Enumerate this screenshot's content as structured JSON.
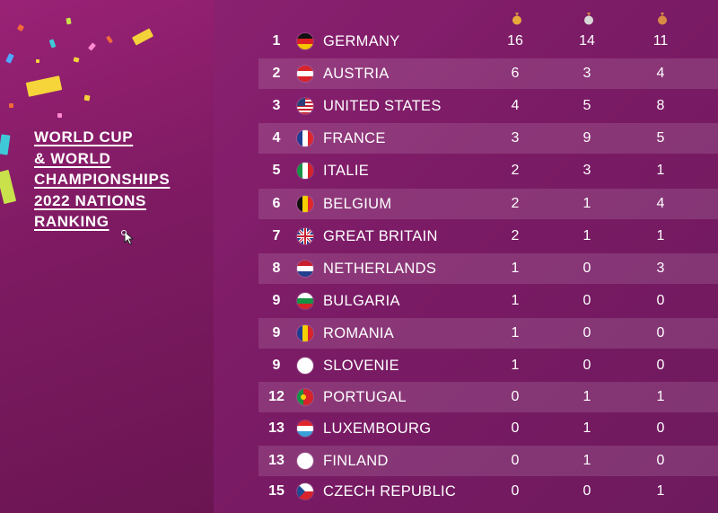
{
  "title_lines": [
    "WORLD CUP",
    "& WORLD",
    "CHAMPIONSHIPS",
    "2022 NATIONS",
    "RANKING"
  ],
  "colors": {
    "left_panel": "#8a1f6a",
    "right_panel": "#7c1b66",
    "text": "#ffffff",
    "gold": "#e9a93b",
    "silver": "#d8d8d8",
    "bronze": "#d98a45"
  },
  "medal_columns": [
    "gold-medal-icon",
    "silver-medal-icon",
    "bronze-medal-icon"
  ],
  "rows": [
    {
      "rank": "1",
      "flag": "germany-flag-icon",
      "country": "GERMANY",
      "gold": "16",
      "silver": "14",
      "bronze": "11"
    },
    {
      "rank": "2",
      "flag": "austria-flag-icon",
      "country": "AUSTRIA",
      "gold": "6",
      "silver": "3",
      "bronze": "4"
    },
    {
      "rank": "3",
      "flag": "united-states-flag-icon",
      "country": "UNITED STATES",
      "gold": "4",
      "silver": "5",
      "bronze": "8"
    },
    {
      "rank": "4",
      "flag": "france-flag-icon",
      "country": "FRANCE",
      "gold": "3",
      "silver": "9",
      "bronze": "5"
    },
    {
      "rank": "5",
      "flag": "italy-flag-icon",
      "country": "ITALIE",
      "gold": "2",
      "silver": "3",
      "bronze": "1"
    },
    {
      "rank": "6",
      "flag": "belgium-flag-icon",
      "country": "BELGIUM",
      "gold": "2",
      "silver": "1",
      "bronze": "4"
    },
    {
      "rank": "7",
      "flag": "great-britain-flag-icon",
      "country": "GREAT BRITAIN",
      "gold": "2",
      "silver": "1",
      "bronze": "1"
    },
    {
      "rank": "8",
      "flag": "netherlands-flag-icon",
      "country": "NETHERLANDS",
      "gold": "1",
      "silver": "0",
      "bronze": "3"
    },
    {
      "rank": "9",
      "flag": "bulgaria-flag-icon",
      "country": "BULGARIA",
      "gold": "1",
      "silver": "0",
      "bronze": "0"
    },
    {
      "rank": "9",
      "flag": "romania-flag-icon",
      "country": "ROMANIA",
      "gold": "1",
      "silver": "0",
      "bronze": "0"
    },
    {
      "rank": "9",
      "flag": "slovenia-flag-icon",
      "country": "SLOVENIE",
      "gold": "1",
      "silver": "0",
      "bronze": "0"
    },
    {
      "rank": "12",
      "flag": "portugal-flag-icon",
      "country": "PORTUGAL",
      "gold": "0",
      "silver": "1",
      "bronze": "1"
    },
    {
      "rank": "13",
      "flag": "luxembourg-flag-icon",
      "country": "LUXEMBOURG",
      "gold": "0",
      "silver": "1",
      "bronze": "0"
    },
    {
      "rank": "13",
      "flag": "finland-flag-icon",
      "country": "FINLAND",
      "gold": "0",
      "silver": "1",
      "bronze": "0"
    },
    {
      "rank": "15",
      "flag": "czech-republic-flag-icon",
      "country": "CZECH REPUBLIC",
      "gold": "0",
      "silver": "0",
      "bronze": "1"
    }
  ]
}
